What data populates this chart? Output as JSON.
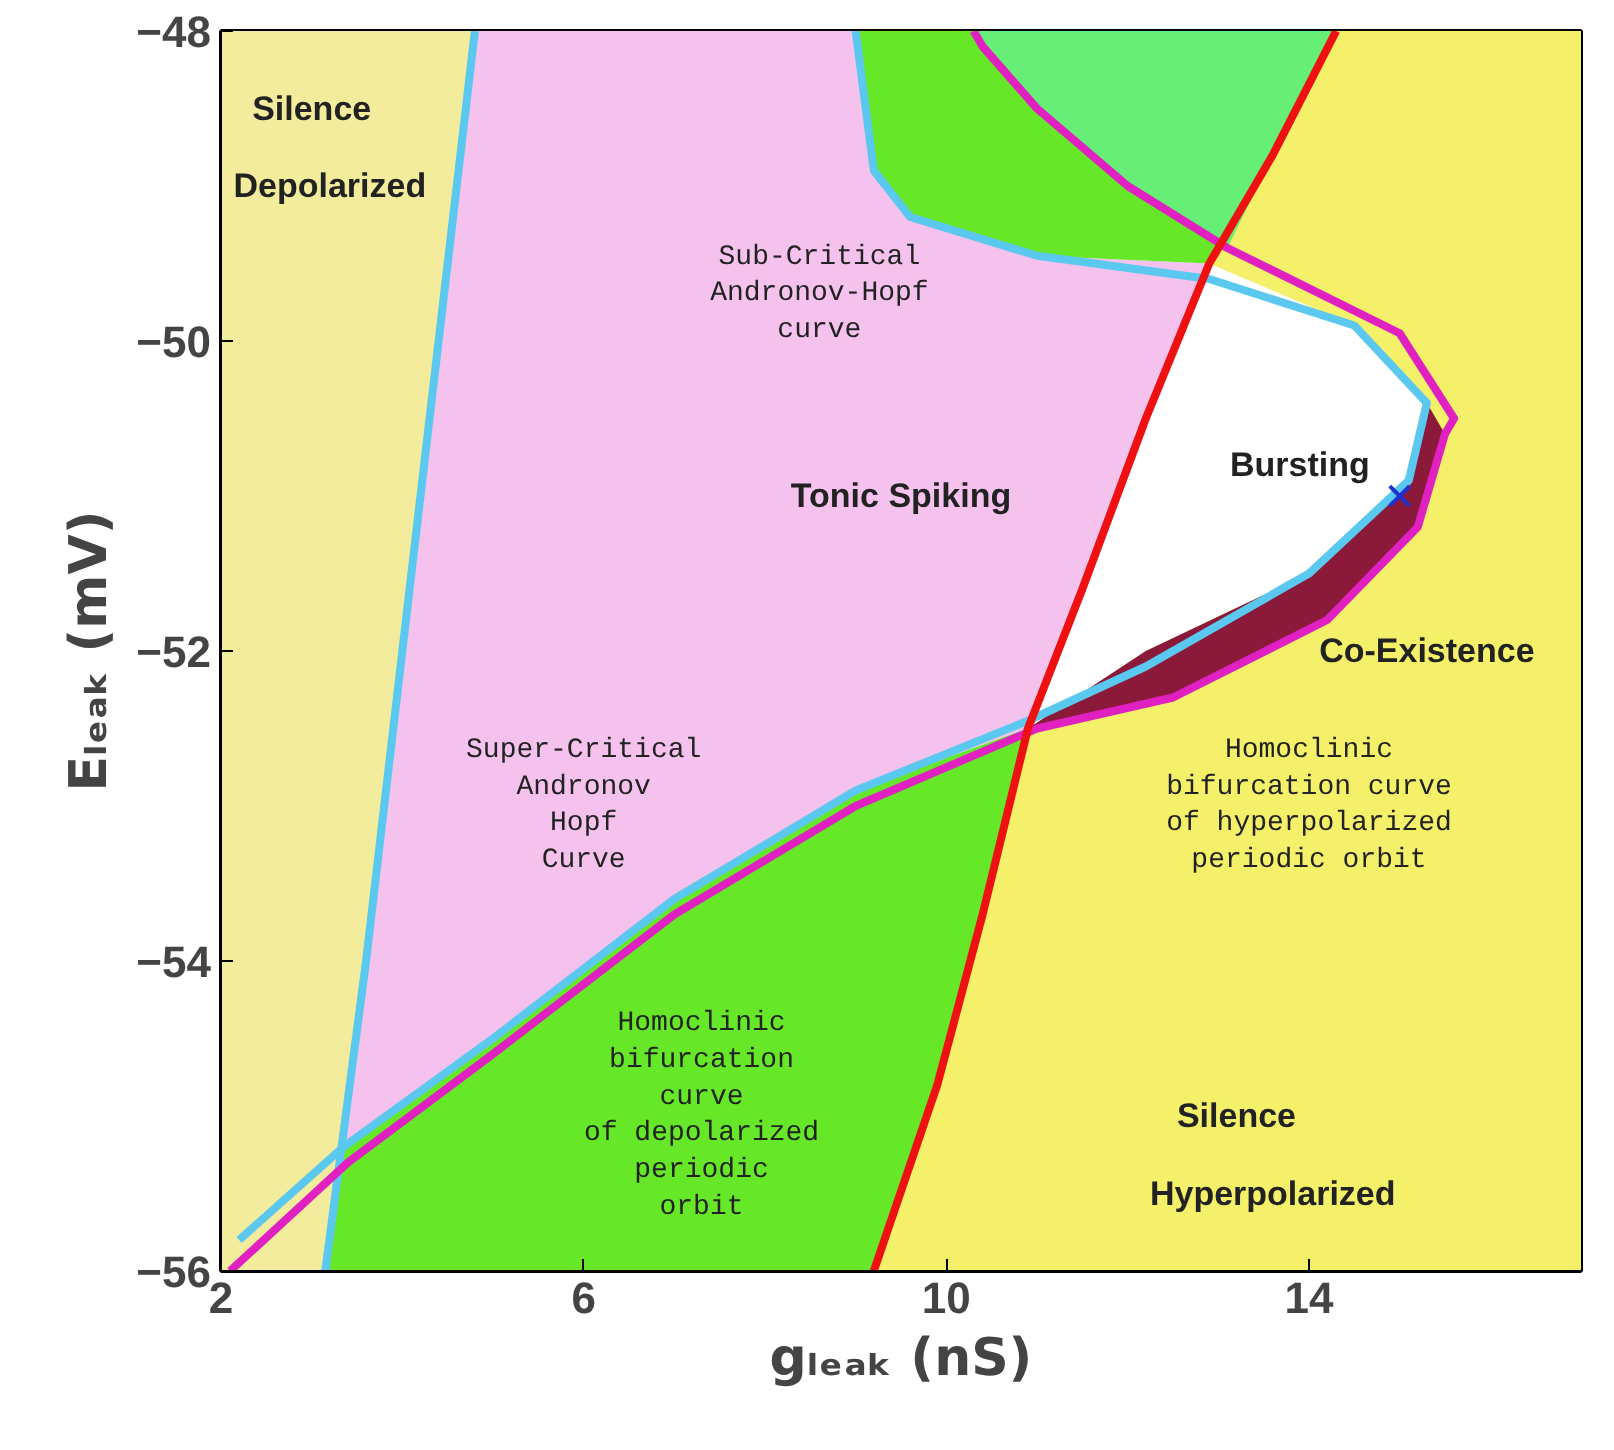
{
  "chart_data": {
    "type": "line",
    "xlabel": "gₗₑₐₖ (nS)",
    "ylabel": "Eₗₑₐₖ (mV)",
    "xlim": [
      2,
      17
    ],
    "ylim": [
      -56,
      -48
    ],
    "xticks": [
      2,
      6,
      10,
      14
    ],
    "yticks": [
      -56,
      -54,
      -52,
      -50,
      -48
    ],
    "series": [
      {
        "type": "area",
        "color": "#f3ec9c",
        "x": [
          2,
          4.8,
          4.4,
          4.0,
          3.6,
          3.15,
          2
        ],
        "values": [
          -48,
          -48,
          -50,
          -52,
          -54,
          -56,
          -56
        ]
      },
      {
        "type": "area",
        "color": "#f4f06a",
        "x": [
          14.3,
          17,
          17,
          9.2,
          9.9,
          10.4,
          10.9,
          11.5,
          12.2,
          12.9,
          13.6
        ],
        "values": [
          -48,
          -48,
          -56,
          -56,
          -54.8,
          -53.7,
          -52.5,
          -51.6,
          -50.5,
          -49.5,
          -48.8
        ]
      },
      {
        "type": "area",
        "color": "#f5c2ee",
        "x": [
          4.8,
          9.0,
          9.2,
          9.6,
          11.0,
          12.9,
          12.2,
          11.5,
          10.9,
          9.0,
          7.0,
          5.0,
          3.35,
          3.6,
          4.0,
          4.4
        ],
        "values": [
          -48,
          -48,
          -48.9,
          -49.2,
          -49.45,
          -49.5,
          -50.5,
          -51.6,
          -52.5,
          -52.9,
          -53.6,
          -54.5,
          -55.2,
          -54,
          -52,
          -50
        ]
      },
      {
        "type": "area",
        "color": "#66e829",
        "x": [
          3.35,
          5.0,
          7.0,
          9.0,
          10.9,
          10.4,
          9.9,
          9.2,
          3.15
        ],
        "values": [
          -55.2,
          -54.5,
          -53.6,
          -52.9,
          -52.5,
          -53.7,
          -54.8,
          -56,
          -56
        ]
      },
      {
        "type": "area",
        "color": "#66e829",
        "x": [
          9.0,
          14.3,
          13.6,
          12.9,
          11.0,
          9.6,
          9.2
        ],
        "values": [
          -48,
          -48,
          -48.8,
          -49.5,
          -49.45,
          -49.2,
          -48.9
        ]
      },
      {
        "type": "area",
        "color": "#66ee77",
        "x": [
          10.3,
          14.3,
          13.6,
          13.1,
          12.0,
          11.0,
          10.4
        ],
        "values": [
          -48,
          -48,
          -48.8,
          -49.4,
          -49.0,
          -48.5,
          -48.1
        ]
      },
      {
        "type": "area",
        "color": "#ffffff",
        "x": [
          12.9,
          14.5,
          15.3,
          15.1,
          14.0,
          12.2,
          10.9,
          11.5,
          12.2
        ],
        "values": [
          -49.5,
          -49.9,
          -50.4,
          -50.9,
          -51.5,
          -52.0,
          -52.5,
          -51.6,
          -50.5
        ]
      },
      {
        "type": "area",
        "color": "#8b1a3a",
        "x": [
          10.9,
          12.2,
          14.0,
          15.1,
          15.3,
          15.5,
          15.2,
          14.2,
          12.5,
          11.0
        ],
        "values": [
          -52.5,
          -52.0,
          -51.5,
          -50.9,
          -50.4,
          -50.6,
          -51.2,
          -51.8,
          -52.3,
          -52.5
        ]
      },
      {
        "color": "#5bc8f0",
        "x": [
          4.8,
          4.4,
          4.0,
          3.6,
          3.15
        ],
        "values": [
          -48,
          -50,
          -52,
          -54,
          -56
        ]
      },
      {
        "color": "#5bc8f0",
        "x": [
          9.0,
          9.2,
          9.6,
          11.0,
          12.9,
          14.5,
          15.3,
          15.1,
          14.0,
          12.2,
          10.9,
          9.0,
          7.0,
          5.0,
          3.35,
          2.2
        ],
        "values": [
          -48,
          -48.9,
          -49.2,
          -49.45,
          -49.6,
          -49.9,
          -50.4,
          -50.9,
          -51.5,
          -52.1,
          -52.45,
          -52.9,
          -53.6,
          -54.5,
          -55.2,
          -55.8
        ]
      },
      {
        "color": "#e020c0",
        "x": [
          10.3,
          10.4,
          11.0,
          12.0,
          13.1,
          15.0,
          15.6,
          15.5,
          15.2,
          14.2,
          12.5,
          11.0,
          9.0,
          7.0,
          5.0,
          3.4,
          2.1
        ],
        "values": [
          -48,
          -48.1,
          -48.5,
          -49.0,
          -49.4,
          -49.95,
          -50.5,
          -50.6,
          -51.2,
          -51.8,
          -52.3,
          -52.5,
          -53.0,
          -53.7,
          -54.6,
          -55.3,
          -56
        ]
      },
      {
        "color": "#ee1111",
        "x": [
          14.3,
          13.95,
          13.6,
          13.25,
          12.9,
          12.55,
          12.2,
          11.85,
          11.5,
          11.2,
          10.9,
          10.65,
          10.4,
          10.15,
          9.9,
          9.55,
          9.2
        ],
        "values": [
          -48,
          -48.4,
          -48.8,
          -49.15,
          -49.5,
          -50.0,
          -50.5,
          -51.05,
          -51.6,
          -52.05,
          -52.5,
          -53.1,
          -53.7,
          -54.25,
          -54.8,
          -55.4,
          -56
        ]
      },
      {
        "type": "scatter",
        "marker": "cross",
        "color": "#2030d0",
        "x": [
          15.0
        ],
        "values": [
          -51.0
        ]
      }
    ],
    "annotations": [
      "Silence",
      "Depolarized",
      "Sub-Critical\nAndronov-Hopf\ncurve",
      "Tonic Spiking",
      "Bursting",
      "Co-Existence",
      "Super-Critical\nAndronov\nHopf\nCurve",
      "Homoclinic\nbifurcation curve\nof hyperpolarized\nperiodic orbit",
      "Homoclinic\nbifurcation\ncurve\nof depolarized\nperiodic\norbit",
      "Silence",
      "Hyperpolarized"
    ]
  }
}
